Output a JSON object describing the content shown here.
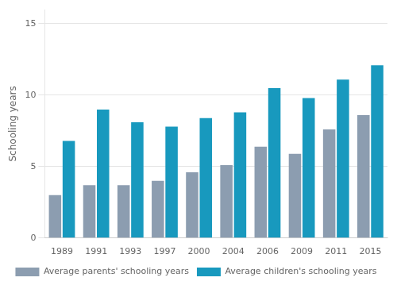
{
  "chart_data": {
    "type": "bar",
    "categories": [
      "1989",
      "1991",
      "1993",
      "1997",
      "2000",
      "2004",
      "2006",
      "2009",
      "2011",
      "2015"
    ],
    "series": [
      {
        "name": "Average parents' schooling years",
        "color": "#8c9db0",
        "values": [
          3.0,
          3.7,
          3.7,
          4.0,
          4.6,
          5.1,
          6.4,
          5.9,
          7.6,
          8.6
        ]
      },
      {
        "name": "Average children's schooling years",
        "color": "#1899be",
        "values": [
          6.8,
          9.0,
          8.1,
          7.8,
          8.4,
          8.8,
          10.5,
          9.8,
          11.1,
          12.1
        ]
      }
    ],
    "ylabel": "Schooling years",
    "ylim": [
      0,
      16
    ],
    "yticks": [
      0,
      5,
      10,
      15
    ],
    "grid": true,
    "legend": "bottom"
  }
}
